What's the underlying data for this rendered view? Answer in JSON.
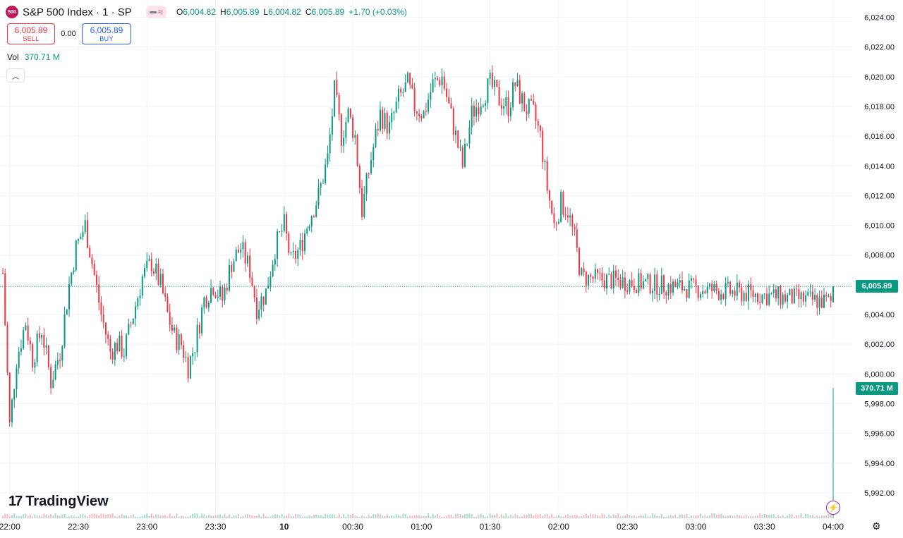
{
  "symbol": {
    "badge": "500",
    "title": "S&P 500 Index · 1 · SP",
    "ohlc": {
      "o_label": "O",
      "o": "6,004.82",
      "h_label": "H",
      "h": "6,005.89",
      "l_label": "L",
      "l": "6,004.82",
      "c_label": "C",
      "c": "6,005.89",
      "change": "+1.70 (+0.03%)"
    }
  },
  "trade": {
    "sell_price": "6,005.89",
    "sell_label": "SELL",
    "spread": "0.00",
    "buy_price": "6,005.89",
    "buy_label": "BUY"
  },
  "volume": {
    "label": "Vol",
    "value": "370.71 M"
  },
  "branding": {
    "logo_mark": "17",
    "logo_text": "TradingView"
  },
  "colors": {
    "up": "#089981",
    "down": "#f23645",
    "grid": "#f0f3fa",
    "current_line": "#089981"
  },
  "labels": {
    "current_price": "6,005.89",
    "current_volume": "370.71 M"
  },
  "chart_data": {
    "type": "candlestick",
    "title": "S&P 500 Index · 1 · SP",
    "ylim": [
      5991,
      6024.5
    ],
    "y_ticks": [
      5992,
      5994,
      5996,
      5998,
      6000,
      6002,
      6004,
      6006,
      6008,
      6010,
      6012,
      6014,
      6016,
      6018,
      6020,
      6022,
      6024
    ],
    "y_tick_labels": [
      "5,992.00",
      "5,994.00",
      "5,996.00",
      "5,998.00",
      "6,000.00",
      "6,002.00",
      "6,004.00",
      "6,006.00",
      "6,008.00",
      "6,010.00",
      "6,012.00",
      "6,014.00",
      "6,016.00",
      "6,018.00",
      "6,020.00",
      "6,022.00",
      "6,024.00"
    ],
    "x_tick_labels": [
      "22:00",
      "22:30",
      "23:00",
      "23:30",
      "10",
      "00:30",
      "01:00",
      "01:30",
      "02:00",
      "02:30",
      "03:00",
      "03:30",
      "04:00"
    ],
    "x_range": [
      "21:57",
      "04:00"
    ],
    "current_price": 6005.89,
    "current_volume": "370.71 M",
    "close_path": [
      [
        "21:57",
        6006.8
      ],
      [
        "22:00",
        5996.5
      ],
      [
        "22:03",
        6001.0
      ],
      [
        "22:07",
        6003.5
      ],
      [
        "22:10",
        6001.0
      ],
      [
        "22:14",
        6003.0
      ],
      [
        "22:18",
        5999.5
      ],
      [
        "22:22",
        6001.5
      ],
      [
        "22:26",
        6006.0
      ],
      [
        "22:29",
        6008.5
      ],
      [
        "22:33",
        6010.0
      ],
      [
        "22:36",
        6007.5
      ],
      [
        "22:40",
        6004.0
      ],
      [
        "22:44",
        6001.5
      ],
      [
        "22:47",
        6002.0
      ],
      [
        "22:50",
        6001.5
      ],
      [
        "22:54",
        6004.0
      ],
      [
        "22:58",
        6006.5
      ],
      [
        "23:02",
        6007.5
      ],
      [
        "23:06",
        6006.0
      ],
      [
        "23:09",
        6004.0
      ],
      [
        "23:12",
        6002.5
      ],
      [
        "23:15",
        6002.0
      ],
      [
        "23:18",
        6000.5
      ],
      [
        "23:21",
        6002.0
      ],
      [
        "23:25",
        6005.0
      ],
      [
        "23:29",
        6006.0
      ],
      [
        "23:33",
        6005.0
      ],
      [
        "23:37",
        6007.5
      ],
      [
        "23:41",
        6008.5
      ],
      [
        "23:45",
        6007.0
      ],
      [
        "23:48",
        6004.5
      ],
      [
        "23:52",
        6005.5
      ],
      [
        "23:56",
        6008.5
      ],
      [
        "00:00",
        6010.0
      ],
      [
        "00:03",
        6007.5
      ],
      [
        "00:07",
        6008.5
      ],
      [
        "00:11",
        6010.5
      ],
      [
        "00:15",
        6012.0
      ],
      [
        "00:19",
        6014.5
      ],
      [
        "00:22",
        6019.0
      ],
      [
        "00:25",
        6016.0
      ],
      [
        "00:28",
        6017.5
      ],
      [
        "00:31",
        6016.0
      ],
      [
        "00:34",
        6011.0
      ],
      [
        "00:38",
        6014.5
      ],
      [
        "00:42",
        6017.5
      ],
      [
        "00:46",
        6016.5
      ],
      [
        "00:50",
        6018.5
      ],
      [
        "00:54",
        6019.5
      ],
      [
        "00:57",
        6018.0
      ],
      [
        "01:01",
        6017.5
      ],
      [
        "01:05",
        6019.5
      ],
      [
        "01:09",
        6020.0
      ],
      [
        "01:12",
        6018.0
      ],
      [
        "01:15",
        6016.0
      ],
      [
        "01:18",
        6014.0
      ],
      [
        "01:22",
        6017.5
      ],
      [
        "01:26",
        6018.5
      ],
      [
        "01:30",
        6019.5
      ],
      [
        "01:34",
        6018.5
      ],
      [
        "01:38",
        6018.0
      ],
      [
        "01:41",
        6019.5
      ],
      [
        "01:45",
        6018.0
      ],
      [
        "01:49",
        6017.5
      ],
      [
        "01:52",
        6016.0
      ],
      [
        "01:55",
        6012.5
      ],
      [
        "01:58",
        6010.0
      ],
      [
        "02:01",
        6011.5
      ],
      [
        "02:04",
        6011.0
      ],
      [
        "02:07",
        6009.0
      ],
      [
        "02:10",
        6006.5
      ]
    ],
    "last_candle": {
      "time": "04:00",
      "open": 6004.82,
      "high": 6005.89,
      "low": 6004.82,
      "close": 6005.89
    }
  }
}
